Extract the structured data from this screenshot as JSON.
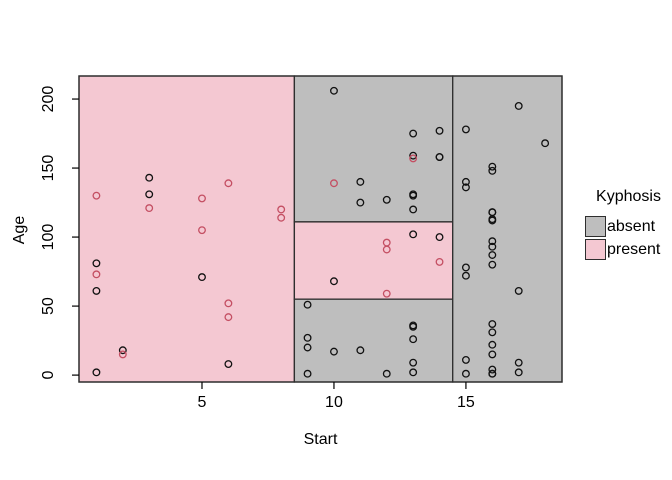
{
  "legend": {
    "title": "Kyphosis",
    "items": [
      {
        "label": "absent",
        "color": "#bebebe"
      },
      {
        "label": "present",
        "color": "#f4c8d2"
      }
    ]
  },
  "chart_data": {
    "type": "scatter",
    "title": "",
    "xlabel": "Start",
    "ylabel": "Age",
    "x_ticks": [
      5,
      10,
      15
    ],
    "y_ticks": [
      0,
      50,
      100,
      150,
      200
    ],
    "xlim": [
      0.34,
      18.64
    ],
    "ylim": [
      -5,
      216.7
    ],
    "grid": false,
    "legend_position": "right",
    "colors": {
      "absent_fill": "#bebebe",
      "present_fill": "#f4c8d2",
      "absent_point": "#111111",
      "present_point": "#c44f63",
      "border": "#2e2e2e"
    },
    "regions": [
      {
        "class": "present",
        "x": [
          0.34,
          8.5
        ],
        "y": [
          -5,
          216.7
        ]
      },
      {
        "class": "absent",
        "x": [
          8.5,
          14.5
        ],
        "y": [
          111,
          216.7
        ]
      },
      {
        "class": "present",
        "x": [
          8.5,
          14.5
        ],
        "y": [
          55,
          111
        ]
      },
      {
        "class": "absent",
        "x": [
          8.5,
          14.5
        ],
        "y": [
          -5,
          55
        ]
      },
      {
        "class": "absent",
        "x": [
          14.5,
          18.64
        ],
        "y": [
          -5,
          216.7
        ]
      }
    ],
    "series": [
      {
        "name": "absent",
        "points": [
          [
            5,
            71
          ],
          [
            14,
            158
          ],
          [
            1,
            2
          ],
          [
            15,
            1
          ],
          [
            16,
            1
          ],
          [
            17,
            61
          ],
          [
            16,
            37
          ],
          [
            16,
            113
          ],
          [
            16,
            148
          ],
          [
            2,
            18
          ],
          [
            12,
            1
          ],
          [
            18,
            168
          ],
          [
            16,
            1
          ],
          [
            15,
            78
          ],
          [
            13,
            175
          ],
          [
            16,
            80
          ],
          [
            9,
            27
          ],
          [
            16,
            22
          ],
          [
            3,
            131
          ],
          [
            13,
            9
          ],
          [
            6,
            8
          ],
          [
            14,
            100
          ],
          [
            16,
            4
          ],
          [
            16,
            151
          ],
          [
            16,
            31
          ],
          [
            11,
            125
          ],
          [
            13,
            130
          ],
          [
            16,
            112
          ],
          [
            11,
            140
          ],
          [
            16,
            93
          ],
          [
            9,
            1
          ],
          [
            9,
            20
          ],
          [
            13,
            35
          ],
          [
            3,
            143
          ],
          [
            1,
            61
          ],
          [
            16,
            97
          ],
          [
            15,
            136
          ],
          [
            13,
            131
          ],
          [
            14,
            177
          ],
          [
            10,
            68
          ],
          [
            17,
            9
          ],
          [
            17,
            2
          ],
          [
            15,
            140
          ],
          [
            15,
            72
          ],
          [
            13,
            2
          ],
          [
            9,
            51
          ],
          [
            13,
            102
          ],
          [
            1,
            81
          ],
          [
            16,
            118
          ],
          [
            16,
            118
          ],
          [
            10,
            17
          ],
          [
            17,
            195
          ],
          [
            13,
            159
          ],
          [
            11,
            18
          ],
          [
            16,
            15
          ],
          [
            14,
            158
          ],
          [
            12,
            127
          ],
          [
            16,
            87
          ],
          [
            10,
            206
          ],
          [
            15,
            11
          ],
          [
            15,
            178
          ],
          [
            13,
            26
          ],
          [
            13,
            120
          ],
          [
            13,
            36
          ]
        ]
      },
      {
        "name": "present",
        "points": [
          [
            5,
            128
          ],
          [
            12,
            59
          ],
          [
            14,
            82
          ],
          [
            5,
            105
          ],
          [
            2,
            15
          ],
          [
            6,
            52
          ],
          [
            12,
            91
          ],
          [
            1,
            73
          ],
          [
            10,
            139
          ],
          [
            3,
            121
          ],
          [
            6,
            139
          ],
          [
            8,
            120
          ],
          [
            1,
            130
          ],
          [
            8,
            114
          ],
          [
            13,
            157
          ],
          [
            12,
            96
          ],
          [
            6,
            42
          ]
        ]
      }
    ]
  }
}
